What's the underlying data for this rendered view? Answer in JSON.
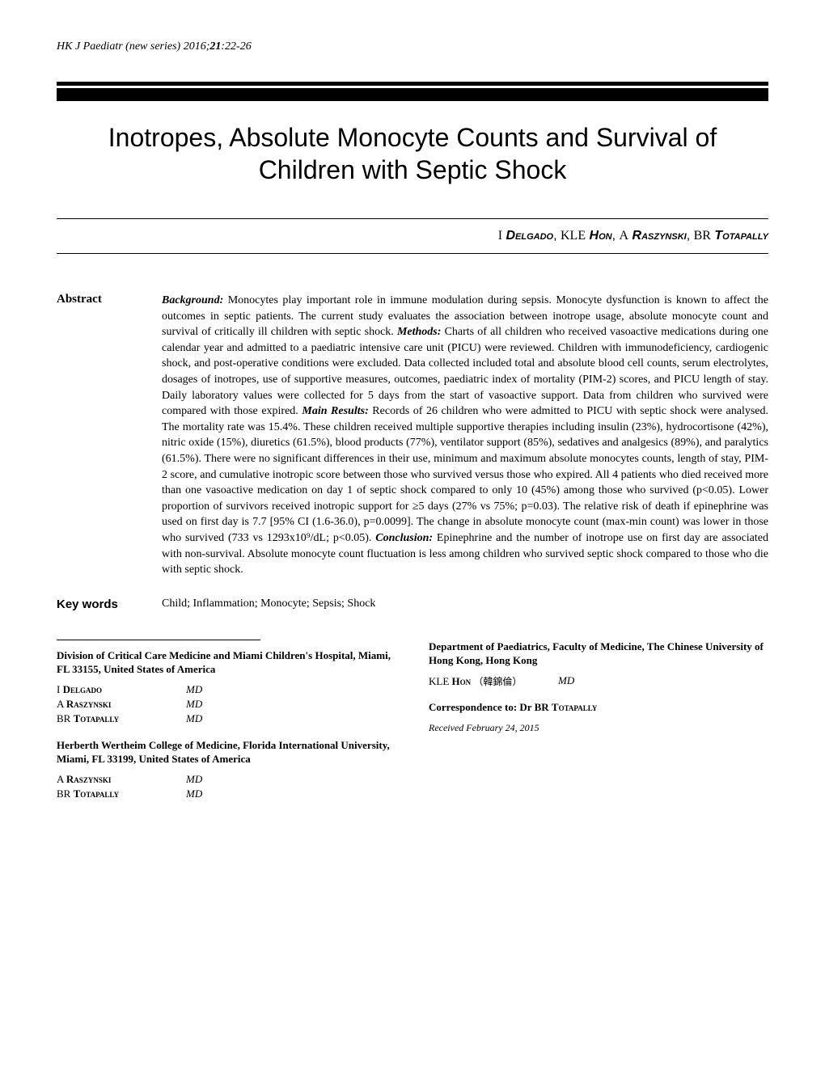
{
  "journal": {
    "name": "HK J Paediatr (new series)",
    "year": "2016",
    "volume": "21",
    "pages": "22-26"
  },
  "title": "Inotropes, Absolute Monocyte Counts and Survival of Children with Septic Shock",
  "authors_line": [
    {
      "initials": "I",
      "surname": "Delgado"
    },
    {
      "initials": "KLE",
      "surname": "Hon"
    },
    {
      "initials": "A",
      "surname": "Raszynski"
    },
    {
      "initials": "BR",
      "surname": "Totapally"
    }
  ],
  "abstract": {
    "label": "Abstract",
    "background_head": "Background:",
    "background": " Monocytes play important role in immune modulation during sepsis. Monocyte dysfunction is known to affect the outcomes in septic patients. The current study evaluates the association between inotrope usage, absolute monocyte count and survival of critically ill children with septic shock. ",
    "methods_head": "Methods:",
    "methods": " Charts of all children who received vasoactive medications during one calendar year and admitted to a paediatric intensive care unit (PICU) were reviewed. Children with immunodeficiency, cardiogenic shock, and post-operative conditions were excluded. Data collected included total and absolute blood cell counts, serum electrolytes, dosages of inotropes, use of supportive measures, outcomes, paediatric index of mortality (PIM-2) scores, and PICU length of stay. Daily laboratory values were collected for 5 days from the start of vasoactive support. Data from children who survived were compared with those expired. ",
    "results_head": "Main Results:",
    "results": " Records of 26 children who were admitted to PICU with septic shock were analysed. The mortality rate was 15.4%. These children received multiple supportive therapies including insulin (23%), hydrocortisone (42%), nitric oxide (15%), diuretics (61.5%), blood products (77%), ventilator support (85%), sedatives and analgesics (89%), and paralytics (61.5%). There were no significant differences in their use, minimum and maximum absolute monocytes counts, length of stay, PIM-2 score, and cumulative inotropic score between those who survived versus those who expired. All 4 patients who died received more than one vasoactive medication on day 1 of septic shock compared to only 10 (45%) among those who survived (p<0.05). Lower proportion of survivors received inotropic support for ≥5 days (27% vs 75%; p=0.03). The relative risk of death if epinephrine was used on first day is 7.7 [95% CI (1.6-36.0), p=0.0099]. The change in absolute monocyte count (max-min count) was lower in those who survived (733 vs 1293x10⁹/dL; p<0.05). ",
    "conclusion_head": "Conclusion:",
    "conclusion": " Epinephrine and the number of inotrope use on first day are associated with non-survival. Absolute monocyte count fluctuation is less among children who survived septic shock compared to those who die with septic shock."
  },
  "keywords": {
    "label": "Key words",
    "text": "Child; Inflammation; Monocyte; Sepsis; Shock"
  },
  "affiliations": {
    "left": [
      {
        "heading": "Division of Critical Care Medicine and Miami Children's Hospital, Miami, FL 33155, United States of America",
        "authors": [
          {
            "initials": "I",
            "surname": "Delgado",
            "degree": "MD"
          },
          {
            "initials": "A",
            "surname": "Raszynski",
            "degree": "MD"
          },
          {
            "initials": "BR",
            "surname": "Totapally",
            "degree": "MD"
          }
        ]
      },
      {
        "heading": "Herberth Wertheim College of Medicine, Florida International University, Miami, FL 33199, United States of America",
        "authors": [
          {
            "initials": "A",
            "surname": "Raszynski",
            "degree": "MD"
          },
          {
            "initials": "BR",
            "surname": "Totapally",
            "degree": "MD"
          }
        ]
      }
    ],
    "right": {
      "heading": "Department of Paediatrics, Faculty of Medicine, The Chinese University of Hong Kong, Hong Kong",
      "authors": [
        {
          "initials": "KLE",
          "surname": "Hon",
          "chinese": "（韓錦倫）",
          "degree": "MD"
        }
      ],
      "correspondence_label": "Correspondence to:",
      "correspondence_name_prefix": "Dr BR",
      "correspondence_surname": "Totapally",
      "received": "Received February 24, 2015"
    }
  }
}
